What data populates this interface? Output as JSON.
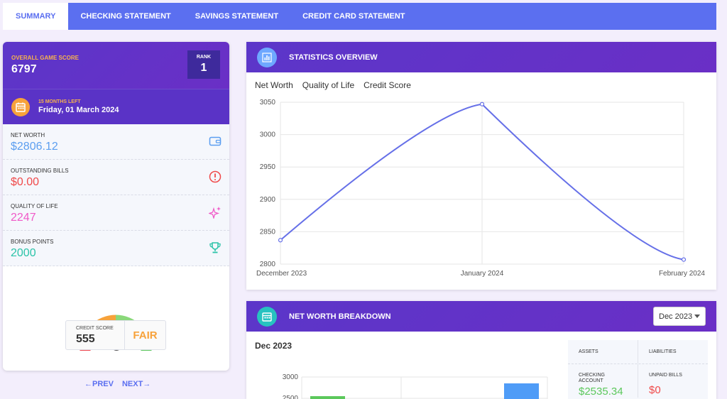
{
  "tabs": [
    {
      "label": "SUMMARY",
      "active": true
    },
    {
      "label": "CHECKING STATEMENT"
    },
    {
      "label": "SAVINGS STATEMENT"
    },
    {
      "label": "CREDIT CARD STATEMENT"
    }
  ],
  "summary": {
    "score_label": "OVERALL GAME SCORE",
    "score": "6797",
    "rank_label": "RANK",
    "rank": "1",
    "months_left": "15 MONTHS LEFT",
    "date": "Friday, 01 March 2024",
    "stats": [
      {
        "label": "NET WORTH",
        "value": "$2806.12",
        "color": "#5b9ef0",
        "icon": "wallet-icon"
      },
      {
        "label": "OUTSTANDING BILLS",
        "value": "$0.00",
        "color": "#f04a4a",
        "icon": "alert-circle-icon"
      },
      {
        "label": "QUALITY OF LIFE",
        "value": "2247",
        "color": "#f05ac8",
        "icon": "sparkles-icon"
      },
      {
        "label": "BONUS POINTS",
        "value": "2000",
        "color": "#2bc3a8",
        "icon": "trophy-icon"
      }
    ],
    "credit_score_label": "CREDIT SCORE",
    "credit_score": "555",
    "credit_rating": "FAIR"
  },
  "pager": {
    "prev": "PREV",
    "next": "NEXT"
  },
  "statistics": {
    "title": "STATISTICS OVERVIEW",
    "tabs": [
      "Net Worth",
      "Quality of Life",
      "Credit Score"
    ]
  },
  "chart_data": {
    "type": "line",
    "x": [
      "December 2023",
      "January 2024",
      "February 2024"
    ],
    "series": [
      {
        "values": [
          2837,
          3047,
          2807
        ],
        "color": "#6670e8"
      }
    ],
    "ylim": [
      2800,
      3050
    ],
    "yticks": [
      2800,
      2850,
      2900,
      2950,
      3000,
      3050
    ],
    "grid": true
  },
  "breakdown": {
    "title": "NET WORTH BREAKDOWN",
    "selected_month": "Dec 2023",
    "chart_title": "Dec 2023",
    "yticks": [
      "3000",
      "2500"
    ],
    "assets_label": "ASSETS",
    "liabilities_label": "LIABILITIES",
    "asset_item": {
      "label": "CHECKING ACCOUNT",
      "value": "$2535.34"
    },
    "liability_item": {
      "label": "UNPAID BILLS",
      "value": "$0"
    },
    "colors": {
      "assets": "#5cc85c",
      "liabilities": "#f04a4a",
      "bar_blue": "#4f9cf7"
    }
  }
}
